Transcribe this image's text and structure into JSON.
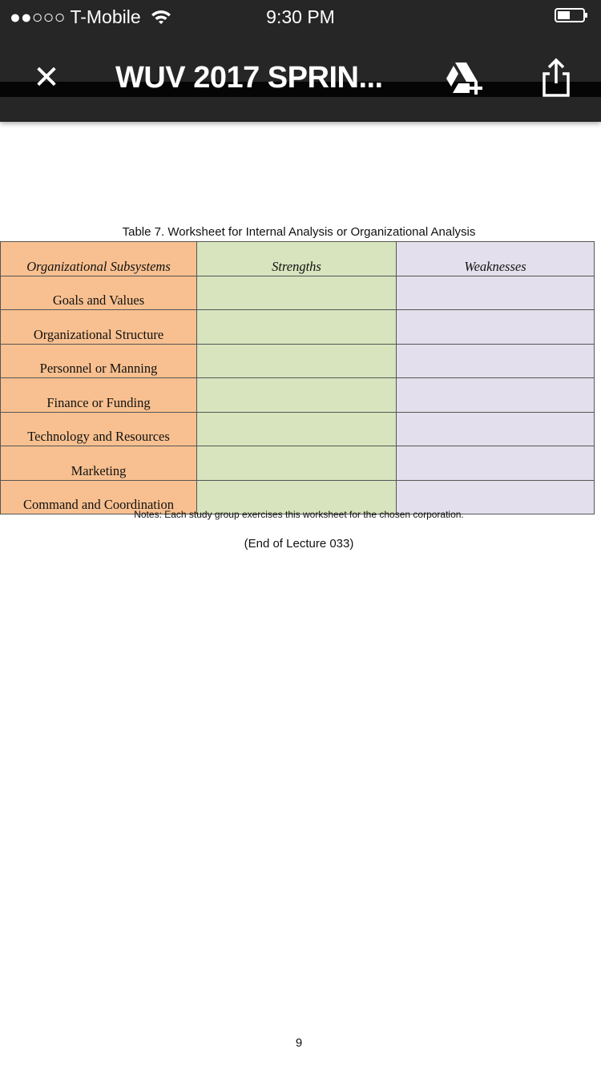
{
  "status_bar": {
    "signal": "●●○○○",
    "carrier": "T-Mobile",
    "time": "9:30 PM",
    "battery_level": 0.45
  },
  "nav": {
    "close_icon": "close-icon",
    "title": "WUV 2017 SPRIN...",
    "drive_icon": "add-to-drive-icon",
    "share_icon": "share-icon"
  },
  "document": {
    "caption": "Table 7. Worksheet for Internal Analysis or Organizational Analysis",
    "headers": [
      "Organizational Subsystems",
      "Strengths",
      "Weaknesses"
    ],
    "rows": [
      "Goals and Values",
      "Organizational Structure",
      "Personnel or Manning",
      "Finance or Funding",
      "Technology and Resources",
      "Marketing",
      "Command and Coordination"
    ],
    "notes": "Notes: Each study group exercises this worksheet for the chosen corporation.",
    "end_text": "(End of Lecture 033)",
    "page_number": "9",
    "colors": {
      "subsystems": "#f8c090",
      "strengths": "#d7e4bd",
      "weaknesses": "#e4dfec"
    }
  }
}
